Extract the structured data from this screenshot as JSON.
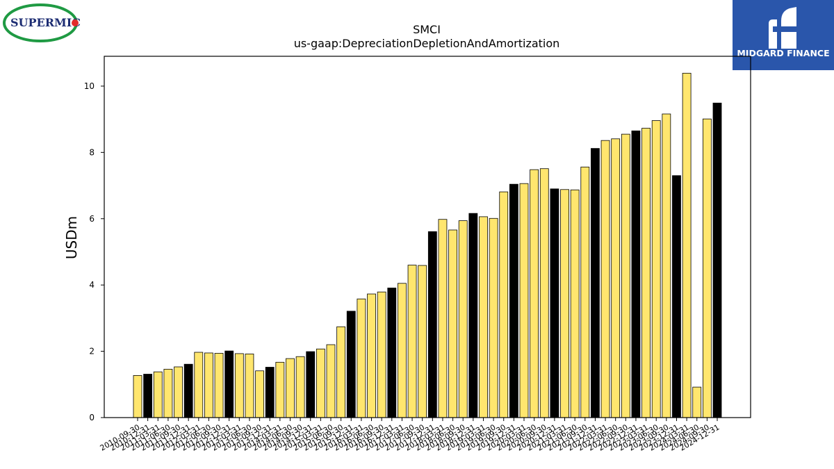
{
  "logos": {
    "left_text": "SUPERMICR",
    "right_text": "MIDGARD FINANCE"
  },
  "colors": {
    "annual_bar": "#000000",
    "quarter_bar": "#ffe66e",
    "logo_blue": "#2a56ab",
    "logo_green": "#1f9a43",
    "logo_red": "#e32b2b",
    "logo_navy": "#1d2d73"
  },
  "chart_data": {
    "type": "bar",
    "title": "SMCI",
    "subtitle": "us-gaap:DepreciationDepletionAndAmortization",
    "ylabel": "USDm",
    "xlabel": "",
    "ylim": [
      0,
      10.9
    ],
    "yticks": [
      0,
      2,
      4,
      6,
      8,
      10
    ],
    "grid": false,
    "categories": [
      "2010-09-30",
      "2010-12-31",
      "2011-03-31",
      "2011-06-30",
      "2011-09-30",
      "2011-12-31",
      "2012-03-31",
      "2012-06-30",
      "2012-09-30",
      "2012-12-31",
      "2013-03-31",
      "2013-06-30",
      "2013-09-30",
      "2013-12-31",
      "2014-03-31",
      "2014-06-30",
      "2014-09-30",
      "2014-12-31",
      "2015-03-31",
      "2015-06-30",
      "2015-09-30",
      "2015-12-31",
      "2016-03-31",
      "2016-06-30",
      "2016-09-30",
      "2016-12-31",
      "2017-03-31",
      "2017-06-30",
      "2017-09-30",
      "2017-12-31",
      "2018-03-31",
      "2018-06-30",
      "2018-09-30",
      "2018-12-31",
      "2019-03-31",
      "2019-06-30",
      "2019-09-30",
      "2019-12-31",
      "2020-03-31",
      "2020-06-30",
      "2020-09-30",
      "2020-12-31",
      "2021-03-31",
      "2021-06-30",
      "2021-09-30",
      "2021-12-31",
      "2022-03-31",
      "2022-06-30",
      "2022-09-30",
      "2022-12-31",
      "2023-03-31",
      "2023-06-30",
      "2023-09-30",
      "2023-12-31",
      "2024-03-31",
      "2024-06-30",
      "2024-09-30",
      "2024-12-31"
    ],
    "values": [
      1.27,
      1.31,
      1.38,
      1.46,
      1.53,
      1.61,
      1.97,
      1.95,
      1.94,
      2.01,
      1.93,
      1.92,
      1.41,
      1.52,
      1.67,
      1.78,
      1.84,
      1.99,
      2.07,
      2.2,
      2.74,
      3.21,
      3.58,
      3.73,
      3.79,
      3.91,
      4.05,
      4.6,
      4.59,
      5.61,
      5.98,
      5.66,
      5.94,
      6.16,
      6.06,
      6.01,
      6.81,
      7.04,
      7.06,
      7.48,
      7.51,
      6.9,
      6.88,
      6.87,
      7.56,
      8.12,
      8.36,
      8.41,
      8.55,
      8.65,
      8.73,
      8.96,
      9.16,
      7.3,
      10.39,
      0.92,
      9.01,
      9.49
    ],
    "annual_flags": [
      false,
      true,
      false,
      false,
      false,
      true,
      false,
      false,
      false,
      true,
      false,
      false,
      false,
      true,
      false,
      false,
      false,
      true,
      false,
      false,
      false,
      true,
      false,
      false,
      false,
      true,
      false,
      false,
      false,
      true,
      false,
      false,
      false,
      true,
      false,
      false,
      false,
      true,
      false,
      false,
      false,
      true,
      false,
      false,
      false,
      true,
      false,
      false,
      false,
      true,
      false,
      false,
      false,
      true,
      false,
      false,
      false,
      true
    ],
    "visible_x_labels": [
      "2010-09-30",
      "2010-12-31",
      "2011-03-31",
      "2011-06-30",
      "2011-09-30",
      "2011-12-31",
      "2012-03-31",
      "2012-06-30",
      "2012-09-30",
      "2012-12-31",
      "2013-03-31",
      "2013-06-30",
      "2013-09-30",
      "2013-12-31",
      "2014-03-31",
      "2014-06-30",
      "2014-09-30",
      "2014-12-31",
      "2015-03-31",
      "2015-06-30",
      "2015-09-30",
      "2015-12-31",
      "2016-03-31",
      "2016-06-30",
      "2016-09-30",
      "2016-12-31",
      "2017-03-31",
      "2017-06-30",
      "2017-09-30",
      "2017-12-31",
      "2018-03-31",
      "2018-06-30",
      "2018-09-30",
      "2018-12-31",
      "2019-03-31",
      "2019-06-30",
      "2019-09-30",
      "2019-12-31",
      "2020-03-31",
      "2020-06-30",
      "2020-09-30",
      "2020-12-31",
      "2021-03-31",
      "2021-06-30",
      "2021-09-30",
      "2021-12-31",
      "2022-03-31",
      "2022-06-30",
      "2022-09-30",
      "2022-12-31",
      "2023-03-31",
      "2023-06-30",
      "2023-09-30",
      "2023-12-31",
      "2024-03-31",
      "2024-06-30",
      "2024-09-30",
      "2024-12-31"
    ]
  }
}
